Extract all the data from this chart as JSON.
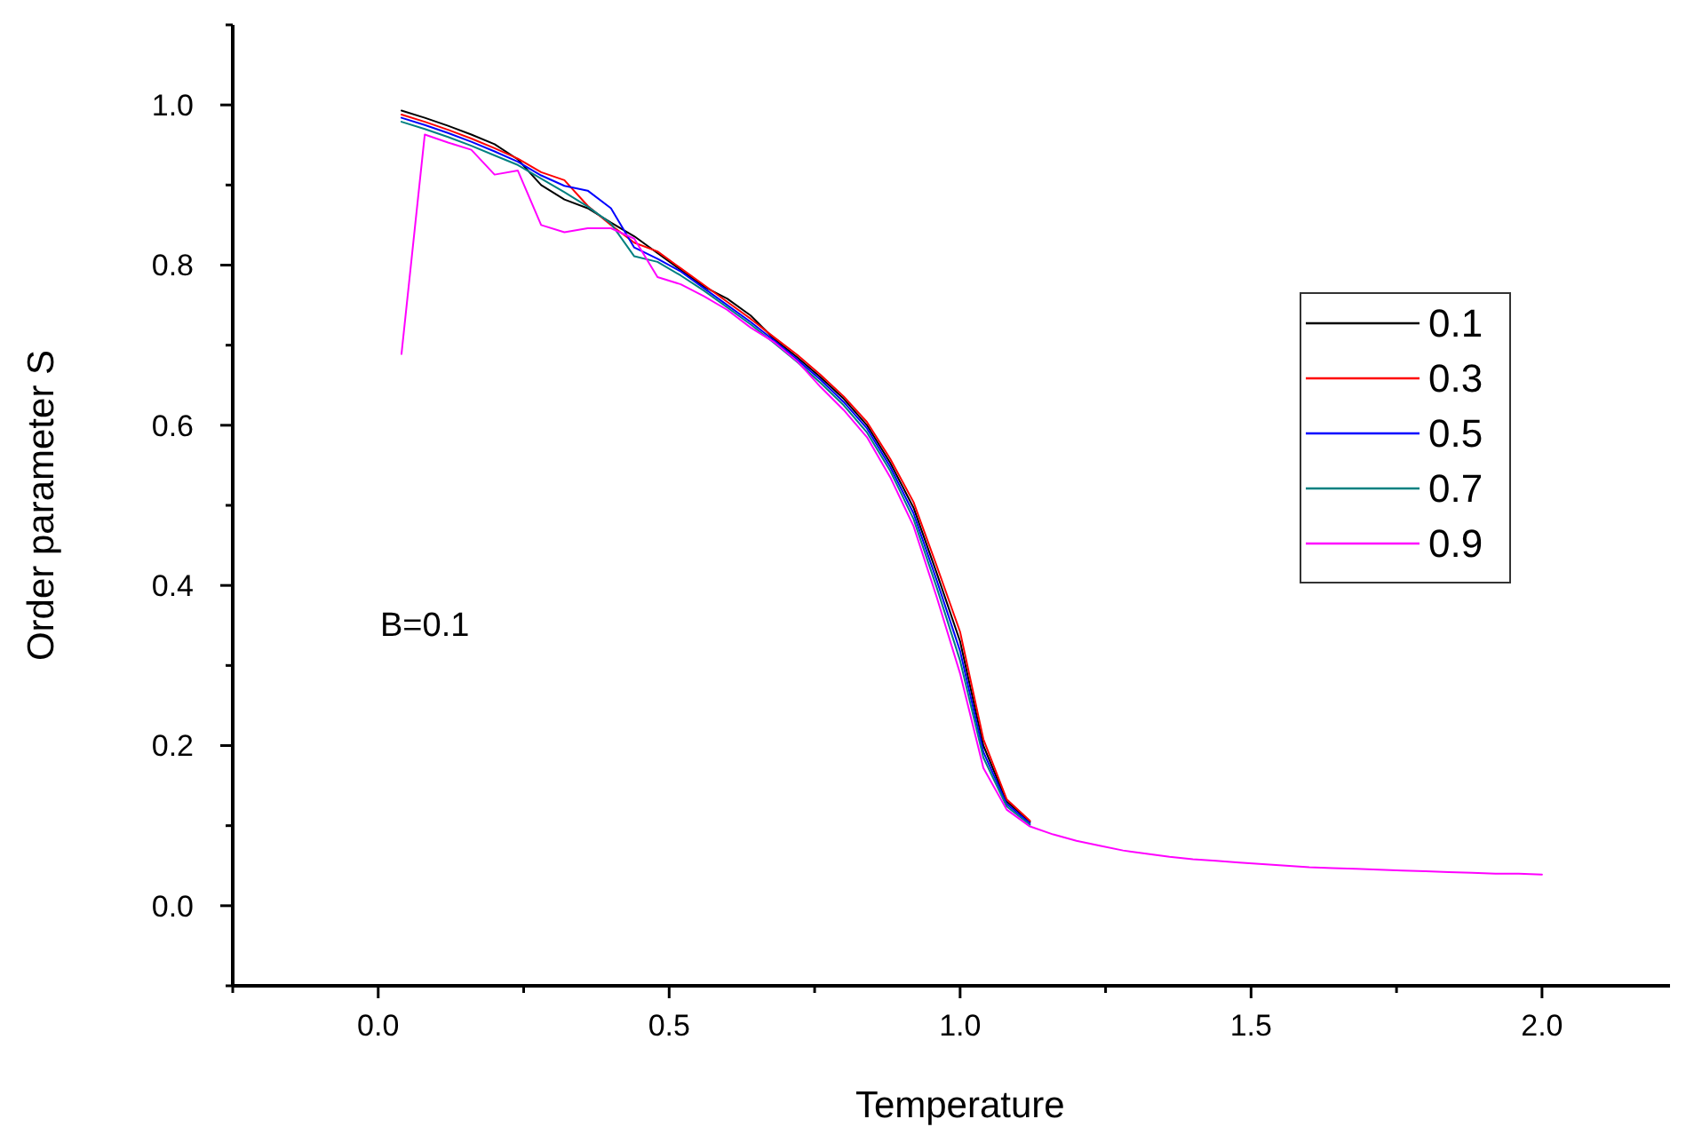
{
  "chart_data": {
    "type": "line",
    "xlabel": "Temperature",
    "ylabel": "Order parameter S",
    "annotations": [
      "B=0.1"
    ],
    "x": [
      0.04,
      0.08,
      0.12,
      0.16,
      0.2,
      0.24,
      0.28,
      0.32,
      0.36,
      0.4,
      0.44,
      0.48,
      0.52,
      0.56,
      0.6,
      0.64,
      0.68,
      0.72,
      0.76,
      0.8,
      0.84,
      0.88,
      0.92,
      0.96,
      1.0,
      1.04,
      1.08,
      1.12,
      1.16,
      1.2,
      1.24,
      1.28,
      1.32,
      1.36,
      1.4,
      1.44,
      1.48,
      1.52,
      1.56,
      1.6,
      1.64,
      1.68,
      1.72,
      1.76,
      1.8,
      1.84,
      1.88,
      1.92,
      1.96,
      2.0
    ],
    "series": [
      {
        "name": "0.1",
        "color": "#000000",
        "values": [
          0.993,
          0.984,
          0.974,
          0.963,
          0.951,
          0.932,
          0.9,
          0.882,
          0.871,
          0.853,
          0.836,
          0.815,
          0.794,
          0.773,
          0.758,
          0.737,
          0.708,
          0.685,
          0.66,
          0.633,
          0.6,
          0.553,
          0.497,
          0.415,
          0.33,
          0.2,
          0.13,
          0.105,
          null,
          null,
          null,
          null,
          null,
          null,
          null,
          null,
          null,
          null,
          null,
          null,
          null,
          null,
          null,
          null,
          null,
          null,
          null,
          null,
          null,
          null
        ]
      },
      {
        "name": "0.3",
        "color": "#ff0000",
        "values": [
          0.988,
          0.979,
          0.969,
          0.958,
          0.946,
          0.933,
          0.916,
          0.906,
          0.874,
          0.85,
          0.828,
          0.817,
          0.796,
          0.775,
          0.754,
          0.733,
          0.71,
          0.688,
          0.663,
          0.636,
          0.604,
          0.558,
          0.504,
          0.424,
          0.342,
          0.208,
          0.133,
          0.106,
          null,
          null,
          null,
          null,
          null,
          null,
          null,
          null,
          null,
          null,
          null,
          null,
          null,
          null,
          null,
          null,
          null,
          null,
          null,
          null,
          null,
          null
        ]
      },
      {
        "name": "0.5",
        "color": "#0000ff",
        "values": [
          0.984,
          0.975,
          0.965,
          0.954,
          0.942,
          0.929,
          0.912,
          0.899,
          0.893,
          0.871,
          0.822,
          0.808,
          0.792,
          0.771,
          0.75,
          0.729,
          0.706,
          0.682,
          0.657,
          0.629,
          0.596,
          0.548,
          0.49,
          0.406,
          0.318,
          0.192,
          0.127,
          0.103,
          null,
          null,
          null,
          null,
          null,
          null,
          null,
          null,
          null,
          null,
          null,
          null,
          null,
          null,
          null,
          null,
          null,
          null,
          null,
          null,
          null,
          null
        ]
      },
      {
        "name": "0.7",
        "color": "#008080",
        "values": [
          0.979,
          0.97,
          0.96,
          0.949,
          0.937,
          0.925,
          0.908,
          0.891,
          0.873,
          0.852,
          0.811,
          0.804,
          0.787,
          0.768,
          0.747,
          0.726,
          0.703,
          0.679,
          0.653,
          0.625,
          0.591,
          0.543,
          0.483,
          0.397,
          0.306,
          0.185,
          0.124,
          0.101,
          null,
          null,
          null,
          null,
          null,
          null,
          null,
          null,
          null,
          null,
          null,
          null,
          null,
          null,
          null,
          null,
          null,
          null,
          null,
          null,
          null,
          null
        ]
      },
      {
        "name": "0.9",
        "color": "#ff00ff",
        "values": [
          0.689,
          0.963,
          0.953,
          0.944,
          0.913,
          0.918,
          0.85,
          0.841,
          0.846,
          0.846,
          0.833,
          0.785,
          0.776,
          0.761,
          0.744,
          0.722,
          0.704,
          0.68,
          0.648,
          0.619,
          0.585,
          0.535,
          0.474,
          0.385,
          0.29,
          0.172,
          0.12,
          0.099,
          0.089,
          0.081,
          0.075,
          0.069,
          0.065,
          0.061,
          0.058,
          0.056,
          0.054,
          0.052,
          0.05,
          0.048,
          0.047,
          0.046,
          0.045,
          0.044,
          0.043,
          0.042,
          0.041,
          0.04,
          0.04,
          0.039
        ]
      }
    ],
    "xlim": [
      -0.25,
      2.22
    ],
    "ylim": [
      -0.1,
      1.1
    ],
    "xticks": [
      {
        "value": -0.25,
        "label": null
      },
      {
        "value": 0,
        "label": "0.0"
      },
      {
        "value": 0.25,
        "label": null
      },
      {
        "value": 0.5,
        "label": "0.5"
      },
      {
        "value": 0.75,
        "label": null
      },
      {
        "value": 1,
        "label": "1.0"
      },
      {
        "value": 1.25,
        "label": null
      },
      {
        "value": 1.5,
        "label": "1.5"
      },
      {
        "value": 1.75,
        "label": null
      },
      {
        "value": 2,
        "label": "2.0"
      }
    ],
    "yticks": [
      {
        "value": -0.1,
        "label": null
      },
      {
        "value": 0,
        "label": "0.0"
      },
      {
        "value": 0.1,
        "label": null
      },
      {
        "value": 0.2,
        "label": "0.2"
      },
      {
        "value": 0.3,
        "label": null
      },
      {
        "value": 0.4,
        "label": "0.4"
      },
      {
        "value": 0.5,
        "label": null
      },
      {
        "value": 0.6,
        "label": "0.6"
      },
      {
        "value": 0.7,
        "label": null
      },
      {
        "value": 0.8,
        "label": "0.8"
      },
      {
        "value": 0.9,
        "label": null
      },
      {
        "value": 1,
        "label": "1.0"
      },
      {
        "value": 1.1,
        "label": null
      }
    ],
    "grid": false,
    "legend": "right",
    "marker": "none",
    "line_style": "solid"
  }
}
